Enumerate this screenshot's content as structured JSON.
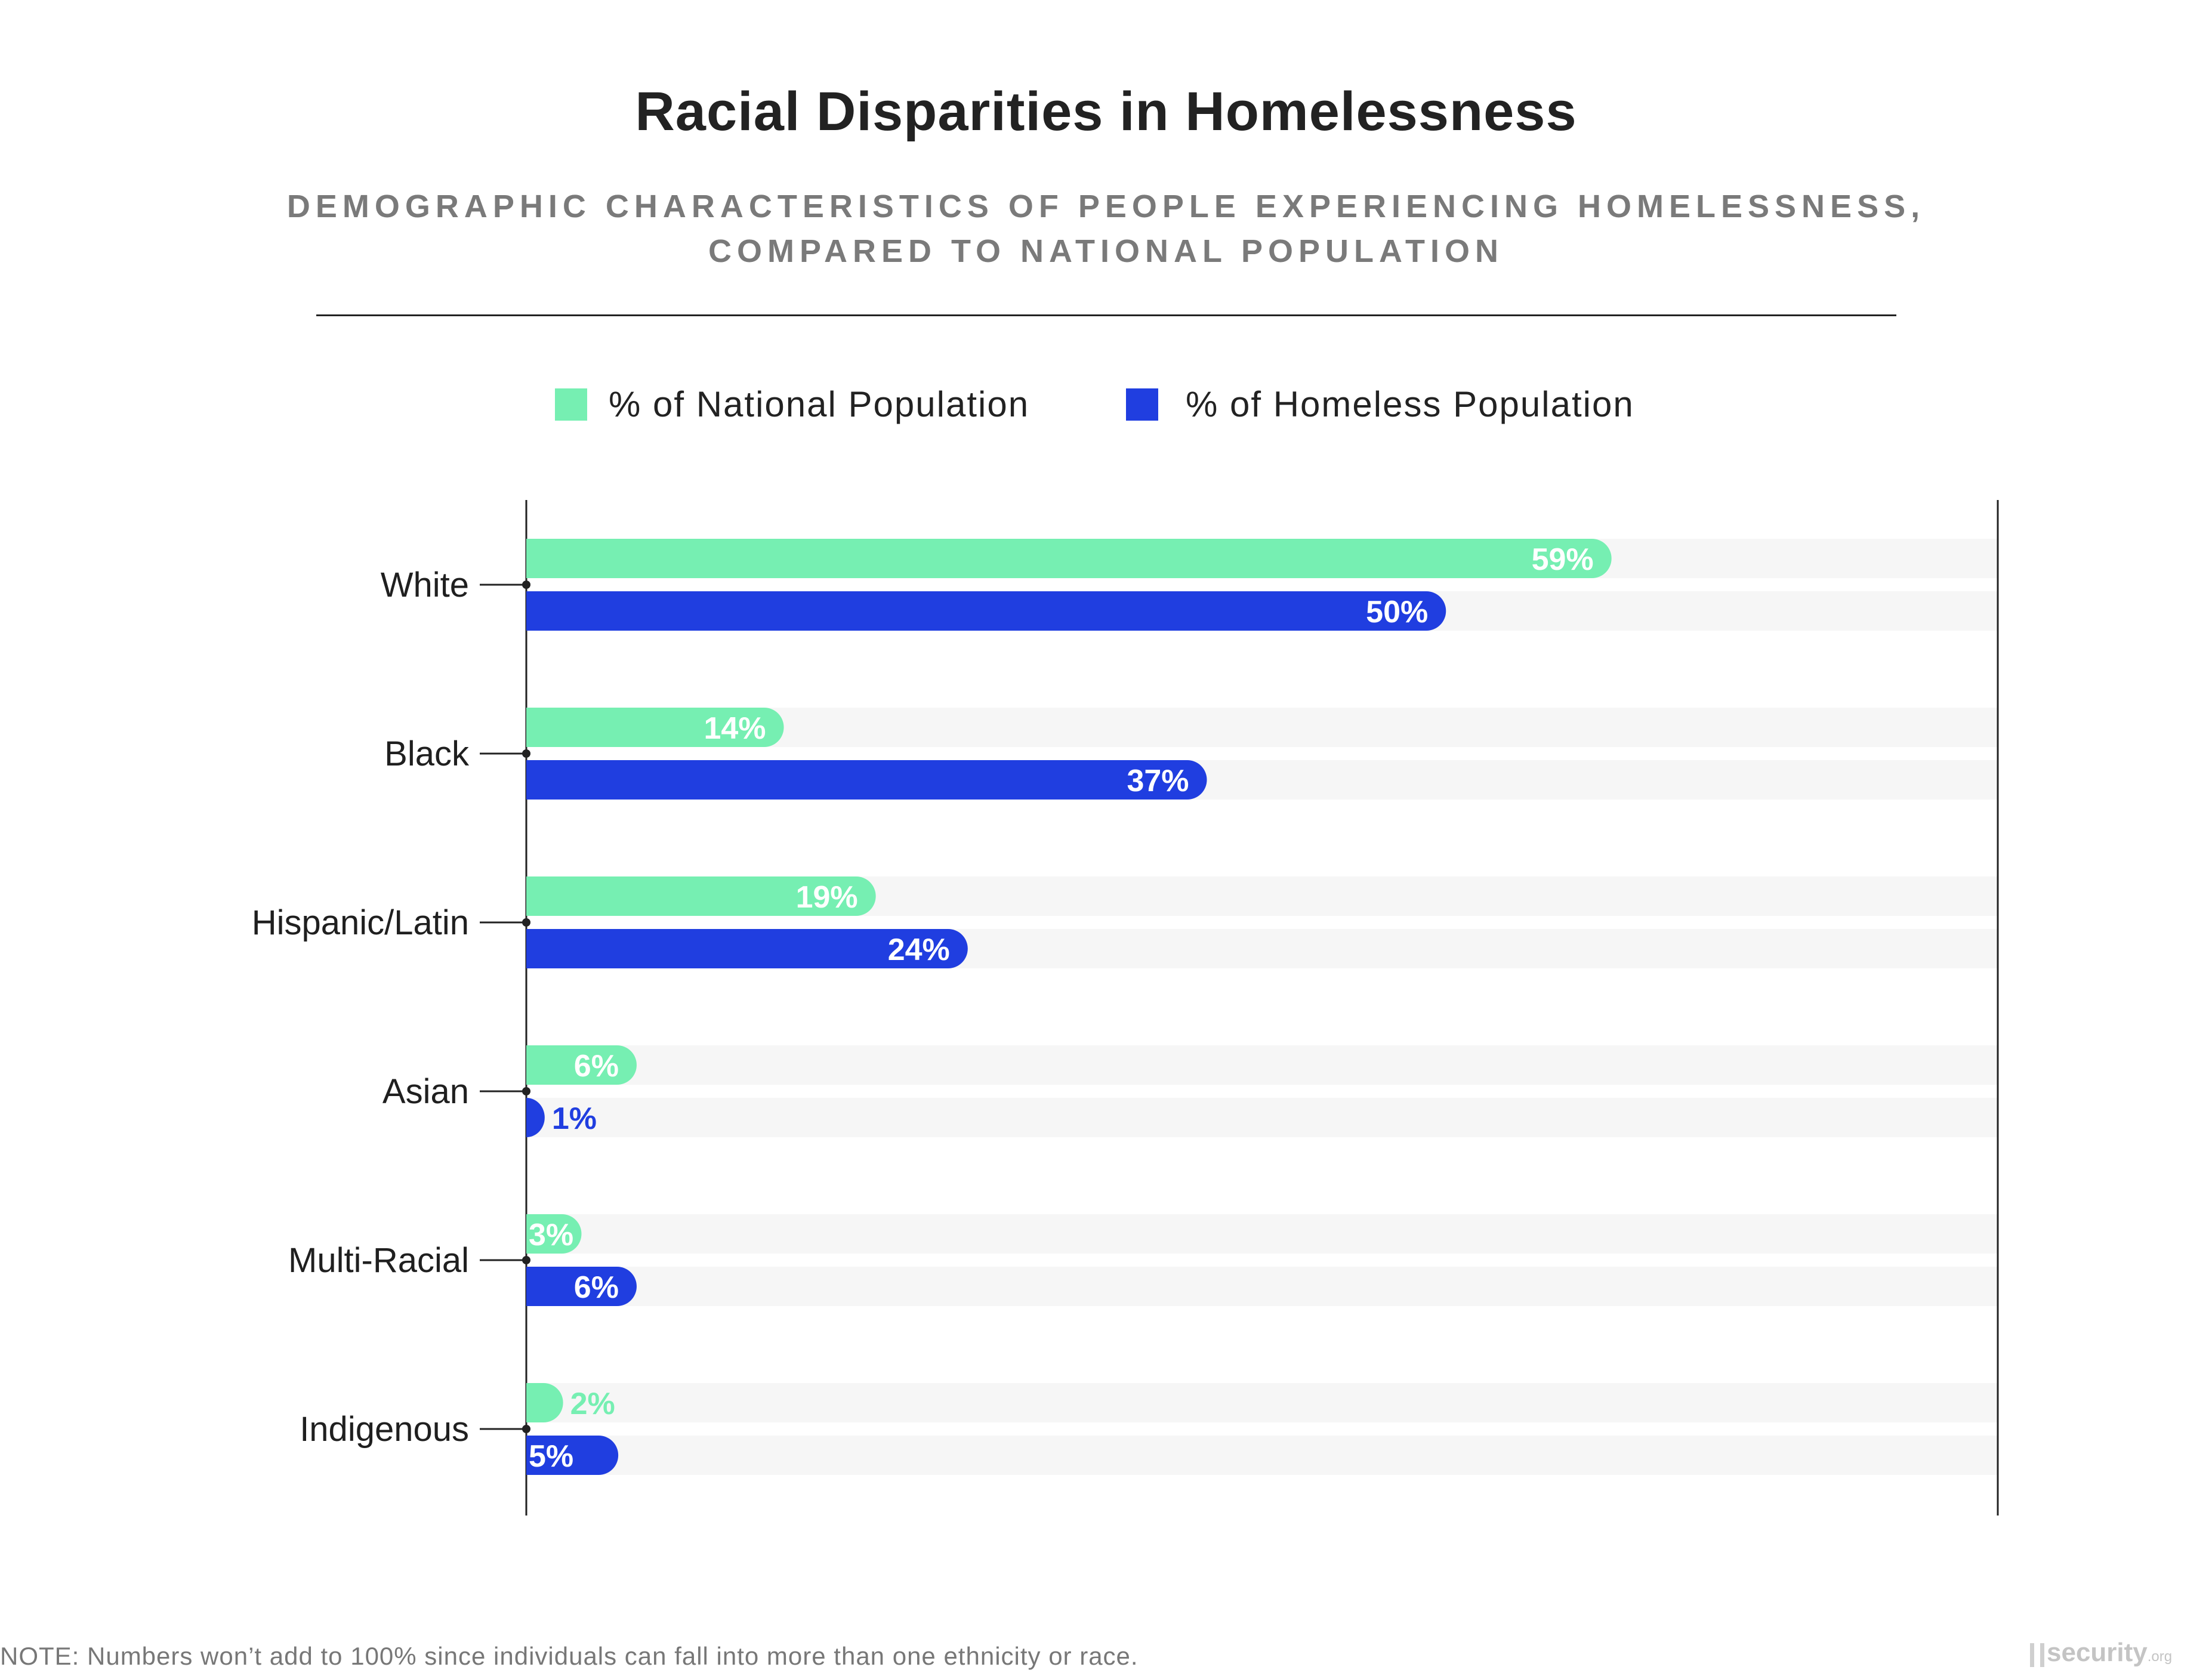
{
  "title": "Racial Disparities in Homelessness",
  "subtitle_line1": "DEMOGRAPHIC CHARACTERISTICS OF PEOPLE EXPERIENCING HOMELESSNESS,",
  "subtitle_line2": "COMPARED TO NATIONAL POPULATION",
  "legend": [
    {
      "label": "% of National Population",
      "color": "#76efb2"
    },
    {
      "label": "% of Homeless Population",
      "color": "#203ee0"
    }
  ],
  "note": "NOTE: Numbers won’t add to 100% since individuals can fall into more than one ethnicity or race.",
  "logo": {
    "text": "security",
    "suffix": ".org"
  },
  "chart_data": {
    "type": "bar",
    "orientation": "horizontal",
    "categories": [
      "White",
      "Black",
      "Hispanic/Latin",
      "Asian",
      "Multi-Racial",
      "Indigenous"
    ],
    "series": [
      {
        "name": "% of National Population",
        "values": [
          59,
          14,
          19,
          6,
          3,
          2
        ],
        "labels": [
          "59%",
          "14%",
          "19%",
          "6%",
          "3%",
          "2%"
        ],
        "color": "#76efb2"
      },
      {
        "name": "% of Homeless Population",
        "values": [
          50,
          37,
          24,
          1,
          6,
          5
        ],
        "labels": [
          "50%",
          "37%",
          "24%",
          "1%",
          "6%",
          "5%"
        ],
        "color": "#203ee0"
      }
    ],
    "xlim": [
      0,
      80
    ],
    "grid": false,
    "legend_position": "top-center",
    "track_color": "#f6f6f6"
  }
}
